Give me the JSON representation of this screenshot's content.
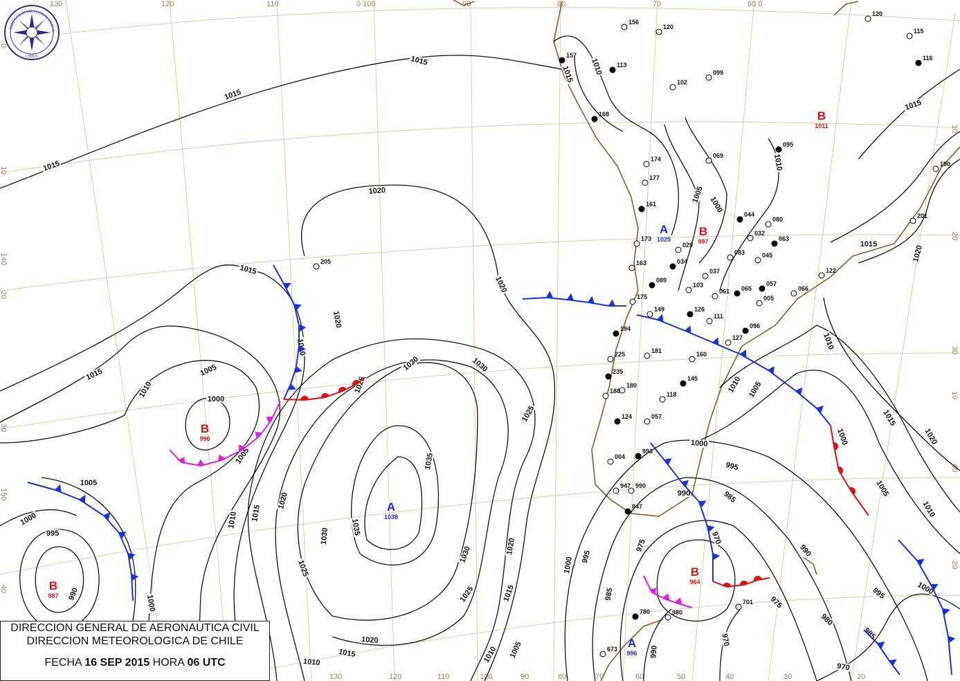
{
  "title_box": {
    "line1": "DIRECCION GENERAL DE AERONAUTICA CIVIL",
    "line2": "DIRECCION METEOROLOGICA DE CHILE",
    "date_label": "FECHA",
    "date": "16 SEP 2015",
    "hour_label": "HORA",
    "hour": "06 UTC"
  },
  "logo": {
    "top_text": "DIRECCION METEOROLOGICA",
    "bottom_text": "CHILE"
  },
  "colors": {
    "cold_front": "#1a2ee6",
    "warm_front": "#e01010",
    "occluded_front": "#e020e0",
    "coastline": "#8b5a2b",
    "graticule": "#dccbb2",
    "high": "#1a2ee6",
    "low": "#e01010"
  },
  "graticule_labels": [
    "130",
    "120",
    "110",
    "0 100",
    "90",
    "80",
    "70",
    "60 0",
    "130",
    "120",
    "110",
    "100",
    "90",
    "80",
    "70",
    "60",
    "50",
    "40",
    "30",
    "20",
    "0",
    "10",
    "140",
    "20",
    "30",
    "150",
    "40",
    "10",
    "20",
    "30",
    "40",
    "20",
    "10"
  ],
  "pressure_centers": [
    {
      "type": "A",
      "value": "1038"
    },
    {
      "type": "B",
      "value": "996"
    },
    {
      "type": "B",
      "value": "987"
    },
    {
      "type": "B",
      "value": "1011"
    },
    {
      "type": "A",
      "value": "1025"
    },
    {
      "type": "B",
      "value": "997"
    },
    {
      "type": "B",
      "value": "964"
    },
    {
      "type": "A",
      "value": "996"
    }
  ],
  "isobar_labels": [
    "1015",
    "1015",
    "1015",
    "1020",
    "1015",
    "1020",
    "1010",
    "1020",
    "1015",
    "1005",
    "1010",
    "1000",
    "1025",
    "1030",
    "1030",
    "1005",
    "1025",
    "1005",
    "1000",
    "995",
    "990",
    "1000",
    "1010",
    "1015",
    "1020",
    "1035",
    "1035",
    "1030",
    "1030",
    "1025",
    "1020",
    "1025",
    "1020",
    "1015",
    "1010",
    "1010",
    "1005",
    "1015",
    "1000",
    "995",
    "985",
    "975",
    "990",
    "985",
    "970",
    "975",
    "980",
    "990",
    "995",
    "1000",
    "985",
    "970",
    "970",
    "990",
    "1000",
    "995",
    "1005",
    "1010",
    "1015",
    "1020",
    "1000",
    "1005",
    "1010",
    "1010",
    "1010",
    "1015",
    "1015",
    "1020",
    "1000",
    "1005",
    "1015",
    "1010"
  ],
  "stations": [
    "157",
    "156",
    "120",
    "113",
    "102",
    "099",
    "168",
    "174",
    "177",
    "161",
    "173",
    "163",
    "089",
    "175",
    "149",
    "194",
    "181",
    "225",
    "235",
    "180",
    "188",
    "124",
    "057",
    "160",
    "145",
    "118",
    "004",
    "993",
    "947",
    "990",
    "847",
    "980",
    "701",
    "780",
    "673",
    "205",
    "044",
    "080",
    "032",
    "063",
    "083",
    "045",
    "057",
    "066",
    "122",
    "096",
    "127",
    "111",
    "126",
    "103",
    "061",
    "065",
    "005",
    "037",
    "034",
    "029",
    "069",
    "095",
    "190",
    "115",
    "116",
    "120",
    "201"
  ]
}
